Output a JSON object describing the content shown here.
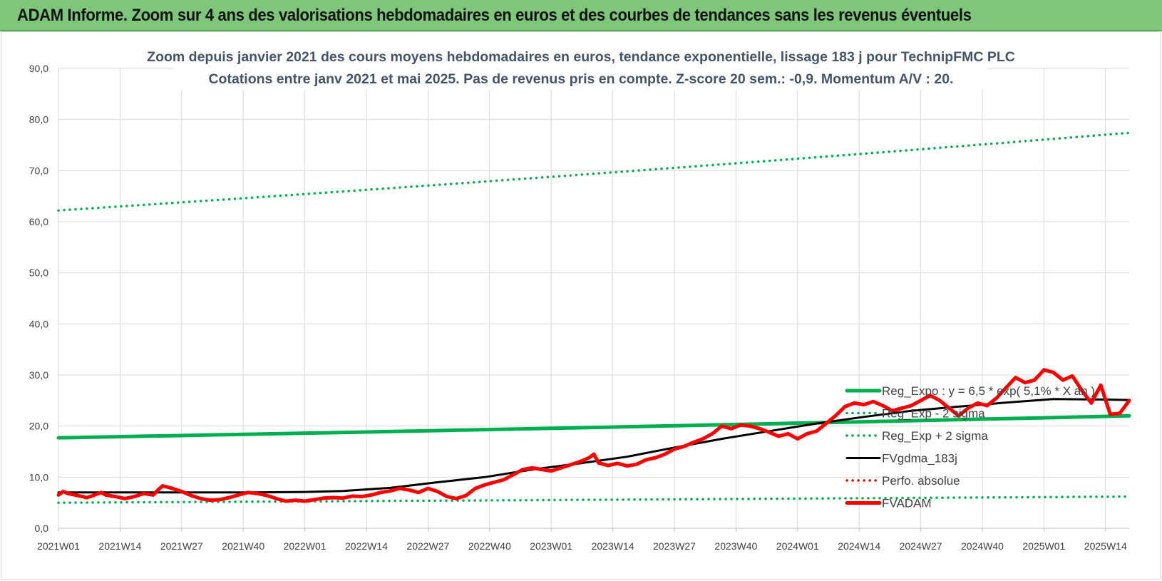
{
  "banner": {
    "title": "ADAM Informe. Zoom sur 4 ans des valorisations hebdomadaires en euros et des courbes de tendances sans les revenus éventuels"
  },
  "colors": {
    "green": "#00b050",
    "red": "#ff0000",
    "black": "#000000",
    "banner": "#7ec77a",
    "grid": "#d9d9d9",
    "title": "#44546a"
  },
  "chart_data": {
    "type": "line",
    "title_line1": "Zoom depuis janvier 2021 des cours moyens hebdomadaires en euros, tendance exponentielle, lissage 183 j pour TechnipFMC PLC",
    "title_line2": "Cotations entre janv 2021 et mai 2025. Pas de revenus pris en compte. Z-score 20 sem.: -0,9. Momentum A/V : 20.",
    "ylim": [
      0,
      90
    ],
    "y_ticks": [
      "0,0",
      "10,0",
      "20,0",
      "30,0",
      "40,0",
      "50,0",
      "60,0",
      "70,0",
      "80,0",
      "90,0"
    ],
    "x_range": [
      0,
      226
    ],
    "x_ticks": [
      {
        "label": "2021W01",
        "week": 0
      },
      {
        "label": "2021W14",
        "week": 13
      },
      {
        "label": "2021W27",
        "week": 26
      },
      {
        "label": "2021W40",
        "week": 39
      },
      {
        "label": "2022W01",
        "week": 52
      },
      {
        "label": "2022W14",
        "week": 65
      },
      {
        "label": "2022W27",
        "week": 78
      },
      {
        "label": "2022W40",
        "week": 91
      },
      {
        "label": "2023W01",
        "week": 104
      },
      {
        "label": "2023W14",
        "week": 117
      },
      {
        "label": "2023W27",
        "week": 130
      },
      {
        "label": "2023W40",
        "week": 143
      },
      {
        "label": "2024W01",
        "week": 156
      },
      {
        "label": "2024W14",
        "week": 169
      },
      {
        "label": "2024W27",
        "week": 182
      },
      {
        "label": "2024W40",
        "week": 195
      },
      {
        "label": "2025W01",
        "week": 208
      },
      {
        "label": "2025W14",
        "week": 221
      }
    ],
    "series": [
      {
        "name": "Reg_Expo : y = 6,5 * exp( 5,1% *  X  an )",
        "style": "solid-thick",
        "color": "#00b050",
        "x": [
          0,
          226
        ],
        "values": [
          17.7,
          22.0
        ]
      },
      {
        "name": "Reg_Exp - 2 sigma",
        "style": "dotted",
        "color": "#00b050",
        "x": [
          0,
          226
        ],
        "values": [
          5.0,
          6.2
        ]
      },
      {
        "name": "Reg_Exp + 2 sigma",
        "style": "dotted",
        "color": "#00b050",
        "x": [
          0,
          226
        ],
        "values": [
          62.2,
          77.4
        ]
      },
      {
        "name": "FVgdma_183j",
        "style": "solid",
        "color": "#000000",
        "x": [
          0,
          20,
          40,
          52,
          60,
          70,
          80,
          90,
          100,
          110,
          120,
          130,
          140,
          150,
          160,
          170,
          180,
          190,
          200,
          210,
          220,
          226
        ],
        "values": [
          7.0,
          7.0,
          7.0,
          7.1,
          7.3,
          7.9,
          9.0,
          10.0,
          11.5,
          12.7,
          14.0,
          15.8,
          17.5,
          19.0,
          20.5,
          21.8,
          23.0,
          23.8,
          24.6,
          25.3,
          25.2,
          25.1
        ]
      },
      {
        "name": "Perfo. absolue",
        "style": "dotted",
        "color": "#ff0000",
        "x": [],
        "values": []
      },
      {
        "name": "FVADAM",
        "style": "solid-thick",
        "color": "#ff0000",
        "x": [
          0,
          1,
          2,
          4,
          6,
          7,
          9,
          10,
          12,
          14,
          16,
          18,
          20,
          21,
          22,
          24,
          26,
          28,
          30,
          32,
          34,
          36,
          38,
          40,
          42,
          44,
          46,
          48,
          50,
          52,
          54,
          56,
          58,
          60,
          62,
          64,
          66,
          68,
          70,
          72,
          74,
          76,
          78,
          80,
          82,
          84,
          86,
          88,
          90,
          92,
          94,
          96,
          98,
          100,
          102,
          104,
          106,
          108,
          110,
          112,
          113,
          114,
          116,
          118,
          120,
          122,
          124,
          126,
          128,
          130,
          132,
          134,
          136,
          138,
          140,
          142,
          144,
          146,
          148,
          150,
          152,
          154,
          156,
          158,
          160,
          162,
          164,
          166,
          168,
          170,
          172,
          174,
          176,
          178,
          180,
          182,
          184,
          186,
          188,
          190,
          192,
          194,
          196,
          198,
          200,
          202,
          204,
          206,
          208,
          210,
          212,
          214,
          216,
          218,
          220,
          222,
          224,
          226
        ],
        "values": [
          6.5,
          7.2,
          6.8,
          6.4,
          6.0,
          6.3,
          7.0,
          6.5,
          6.2,
          5.8,
          6.2,
          6.8,
          6.5,
          7.5,
          8.3,
          7.8,
          7.2,
          6.4,
          5.8,
          5.5,
          5.6,
          6.0,
          6.5,
          7.0,
          6.8,
          6.4,
          5.8,
          5.3,
          5.5,
          5.3,
          5.6,
          5.9,
          6.0,
          5.9,
          6.3,
          6.2,
          6.5,
          7.0,
          7.3,
          7.8,
          7.5,
          7.0,
          7.8,
          7.2,
          6.2,
          5.8,
          6.4,
          7.8,
          8.5,
          9.0,
          9.5,
          10.5,
          11.5,
          11.8,
          11.5,
          11.2,
          11.8,
          12.4,
          13.0,
          13.8,
          14.5,
          12.8,
          12.3,
          12.7,
          12.2,
          12.5,
          13.4,
          13.8,
          14.5,
          15.5,
          16.0,
          16.8,
          17.5,
          18.5,
          20.0,
          19.5,
          20.2,
          20.0,
          19.5,
          18.8,
          18.0,
          18.5,
          17.5,
          18.5,
          19.0,
          20.5,
          22.0,
          23.8,
          24.5,
          24.2,
          24.8,
          24.0,
          23.0,
          23.5,
          24.0,
          25.0,
          26.0,
          25.0,
          23.5,
          22.0,
          23.5,
          24.5,
          24.0,
          25.5,
          27.5,
          29.5,
          28.5,
          29.0,
          31.0,
          30.5,
          29.0,
          29.8,
          27.0,
          24.5,
          28.0,
          22.3,
          22.5,
          25.0
        ]
      }
    ]
  }
}
